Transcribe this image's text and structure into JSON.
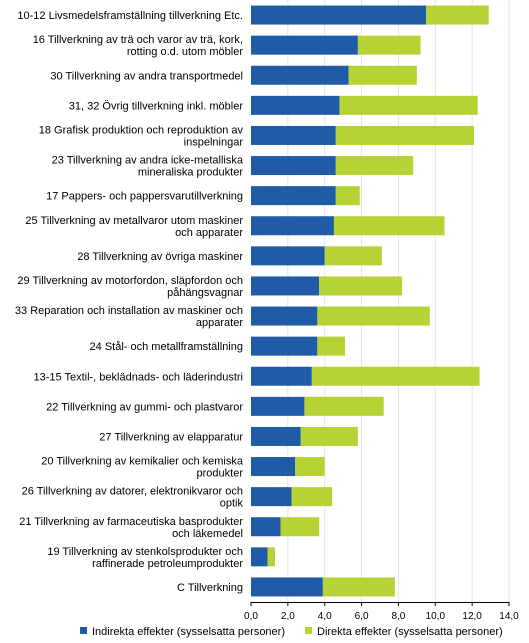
{
  "chart_data": {
    "type": "bar",
    "orientation": "horizontal",
    "stacked": true,
    "categories": [
      "10-12 Livsmedelsframställning tillverkning Etc.",
      "16 Tillverkning av trä och varor av trä, kork, rotting o.d. utom möbler",
      "30 Tillverkning av andra transportmedel",
      "31, 32 Övrig tillverkning inkl. möbler",
      "18 Grafisk produktion och reproduktion av inspelningar",
      "23 Tillverkning av andra icke-metalliska mineraliska produkter",
      "17 Pappers- och pappersvarutillverkning",
      "25 Tillverkning av metallvaror utom maskiner och apparater",
      "28 Tillverkning av övriga maskiner",
      "29 Tillverkning av motorfordon, släpfordon och påhängsvagnar",
      "33 Reparation och installation av maskiner och apparater",
      "24 Stål- och metallframställning",
      "13-15 Textil-, beklädnads- och läderindustri",
      "22 Tillverkning av gummi- och plastvaror",
      "27 Tillverkning av elapparatur",
      "20 Tillverkning av kemikalier och kemiska produkter",
      "26 Tillverkning av datorer, elektronikvaror och optik",
      "21 Tillverkning av farmaceutiska basprodukter och läkemedel",
      "19 Tillverkning av stenkolsprodukter och raffinerade petroleumprodukter",
      "C Tillverkning"
    ],
    "wrapped_labels": [
      [
        "10-12 Livsmedelsframställning tillverkning Etc."
      ],
      [
        "16 Tillverkning av trä och varor av trä, kork,",
        "rotting o.d. utom möbler"
      ],
      [
        "30 Tillverkning av andra transportmedel"
      ],
      [
        "31, 32 Övrig tillverkning inkl. möbler"
      ],
      [
        "18 Grafisk produktion och reproduktion av",
        "inspelningar"
      ],
      [
        "23 Tillverkning av andra icke-metalliska",
        "mineraliska produkter"
      ],
      [
        "17 Pappers- och pappersvarutillverkning"
      ],
      [
        "25 Tillverkning av metallvaror utom maskiner",
        "och apparater"
      ],
      [
        "28 Tillverkning av övriga maskiner"
      ],
      [
        "29 Tillverkning av motorfordon, släpfordon och",
        "påhängsvagnar"
      ],
      [
        "33 Reparation och installation av maskiner och",
        "apparater"
      ],
      [
        "24 Stål- och metallframställning"
      ],
      [
        "13-15 Textil-, beklädnads- och läderindustri"
      ],
      [
        "22 Tillverkning av gummi- och plastvaror"
      ],
      [
        "27 Tillverkning av elapparatur"
      ],
      [
        "20 Tillverkning av kemikalier och kemiska",
        "produkter"
      ],
      [
        "26 Tillverkning av datorer, elektronikvaror och",
        "optik"
      ],
      [
        "21 Tillverkning av farmaceutiska basprodukter",
        "och läkemedel"
      ],
      [
        "19 Tillverkning av stenkolsprodukter och",
        "raffinerade petroleumprodukter"
      ],
      [
        "C Tillverkning"
      ]
    ],
    "series": [
      {
        "name": "Indirekta effekter (sysselsatta personer)",
        "color": "#1f5ba6",
        "values": [
          9.5,
          5.8,
          5.3,
          4.8,
          4.6,
          4.6,
          4.6,
          4.5,
          4.0,
          3.7,
          3.6,
          3.6,
          3.3,
          2.9,
          2.7,
          2.4,
          2.2,
          1.6,
          0.9,
          3.9
        ]
      },
      {
        "name": "Direkta effekter (sysselsatta personer)",
        "color": "#b5d334",
        "values": [
          3.4,
          3.4,
          3.7,
          7.5,
          7.5,
          4.2,
          1.3,
          6.0,
          3.1,
          4.5,
          6.1,
          1.5,
          9.1,
          4.3,
          3.1,
          1.6,
          2.2,
          2.1,
          0.4,
          3.9
        ]
      }
    ],
    "xlim": [
      0,
      14
    ],
    "xticks": [
      "0,0",
      "2,0",
      "4,0",
      "6,0",
      "8,0",
      "10,0",
      "12,0",
      "14,0"
    ],
    "grid": "vertical",
    "legend_position": "bottom"
  }
}
